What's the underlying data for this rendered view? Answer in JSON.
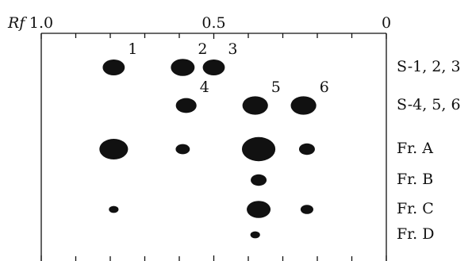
{
  "chart_data": {
    "type": "scatter",
    "x_label": "Rf",
    "xlim": [
      1.0,
      0
    ],
    "xticks": [
      {
        "value": 1.0,
        "label": "1.0"
      },
      0.5,
      0
    ],
    "minor_xticks": [
      0.9,
      0.8,
      0.7,
      0.6,
      0.4,
      0.3,
      0.2,
      0.1
    ],
    "series": [
      {
        "name": "S-1, 2, 3",
        "color": "#111111",
        "values": [
          0.79,
          0.59,
          0.5
        ],
        "sizes": [
          0.064,
          0.069,
          0.064
        ],
        "point_labels": [
          "1",
          "2",
          "3"
        ]
      },
      {
        "name": "S-4, 5, 6",
        "color": "#111111",
        "values": [
          0.58,
          0.38,
          0.24
        ],
        "sizes": [
          0.06,
          0.074,
          0.074
        ],
        "point_labels": [
          "4",
          "5",
          "6"
        ]
      },
      {
        "name": "Fr. A",
        "color": "#111111",
        "values": [
          0.79,
          0.59,
          0.37,
          0.23
        ],
        "sizes": [
          0.083,
          0.041,
          0.097,
          0.046
        ]
      },
      {
        "name": "Fr. B",
        "color": "#111111",
        "values": [
          0.37
        ],
        "sizes": [
          0.046
        ]
      },
      {
        "name": "Fr. C",
        "color": "#111111",
        "values": [
          0.79,
          0.37,
          0.23
        ],
        "sizes": [
          0.028,
          0.069,
          0.037
        ]
      },
      {
        "name": "Fr. D",
        "color": "#111111",
        "values": [
          0.38
        ],
        "sizes": [
          0.028
        ]
      }
    ]
  }
}
